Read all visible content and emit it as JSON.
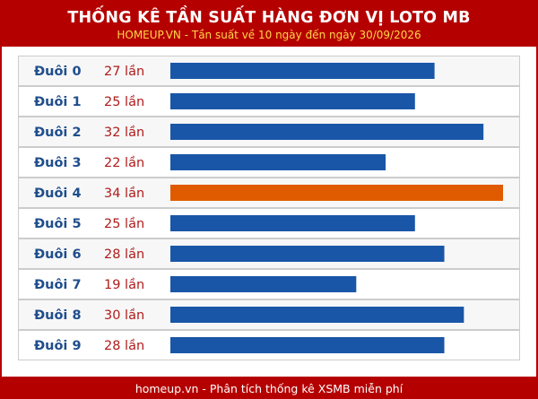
{
  "header": {
    "title": "THỐNG KÊ TẦN SUẤT HÀNG ĐƠN VỊ LOTO MB",
    "subtitle": "HOMEUP.VN - Tần suất về 10 ngày đến ngày 30/09/2026"
  },
  "footer": {
    "text": "homeup.vn - Phân tích thống kê XSMB miễn phí"
  },
  "colors": {
    "brand_red": "#b50000",
    "subtitle_yellow": "#ffd54a",
    "bar_blue": "#1a56a8",
    "bar_highlight": "#e05a00",
    "label_blue": "#1f4e8c",
    "count_red": "#b01c1c",
    "row_border": "#cccccc",
    "row_alt": "#f7f7f7"
  },
  "chart_data": {
    "type": "bar",
    "orientation": "horizontal",
    "categories": [
      "Đuôi 0",
      "Đuôi 1",
      "Đuôi 2",
      "Đuôi 3",
      "Đuôi 4",
      "Đuôi 5",
      "Đuôi 6",
      "Đuôi 7",
      "Đuôi 8",
      "Đuôi 9"
    ],
    "values": [
      27,
      25,
      32,
      22,
      34,
      25,
      28,
      19,
      30,
      28
    ],
    "value_labels": [
      "27 lần",
      "25 lần",
      "32 lần",
      "22 lần",
      "34 lần",
      "25 lần",
      "28 lần",
      "19 lần",
      "30 lần",
      "28 lần"
    ],
    "highlight_index": 4,
    "xlim": [
      0,
      34
    ],
    "grid": false,
    "legend": "none"
  }
}
